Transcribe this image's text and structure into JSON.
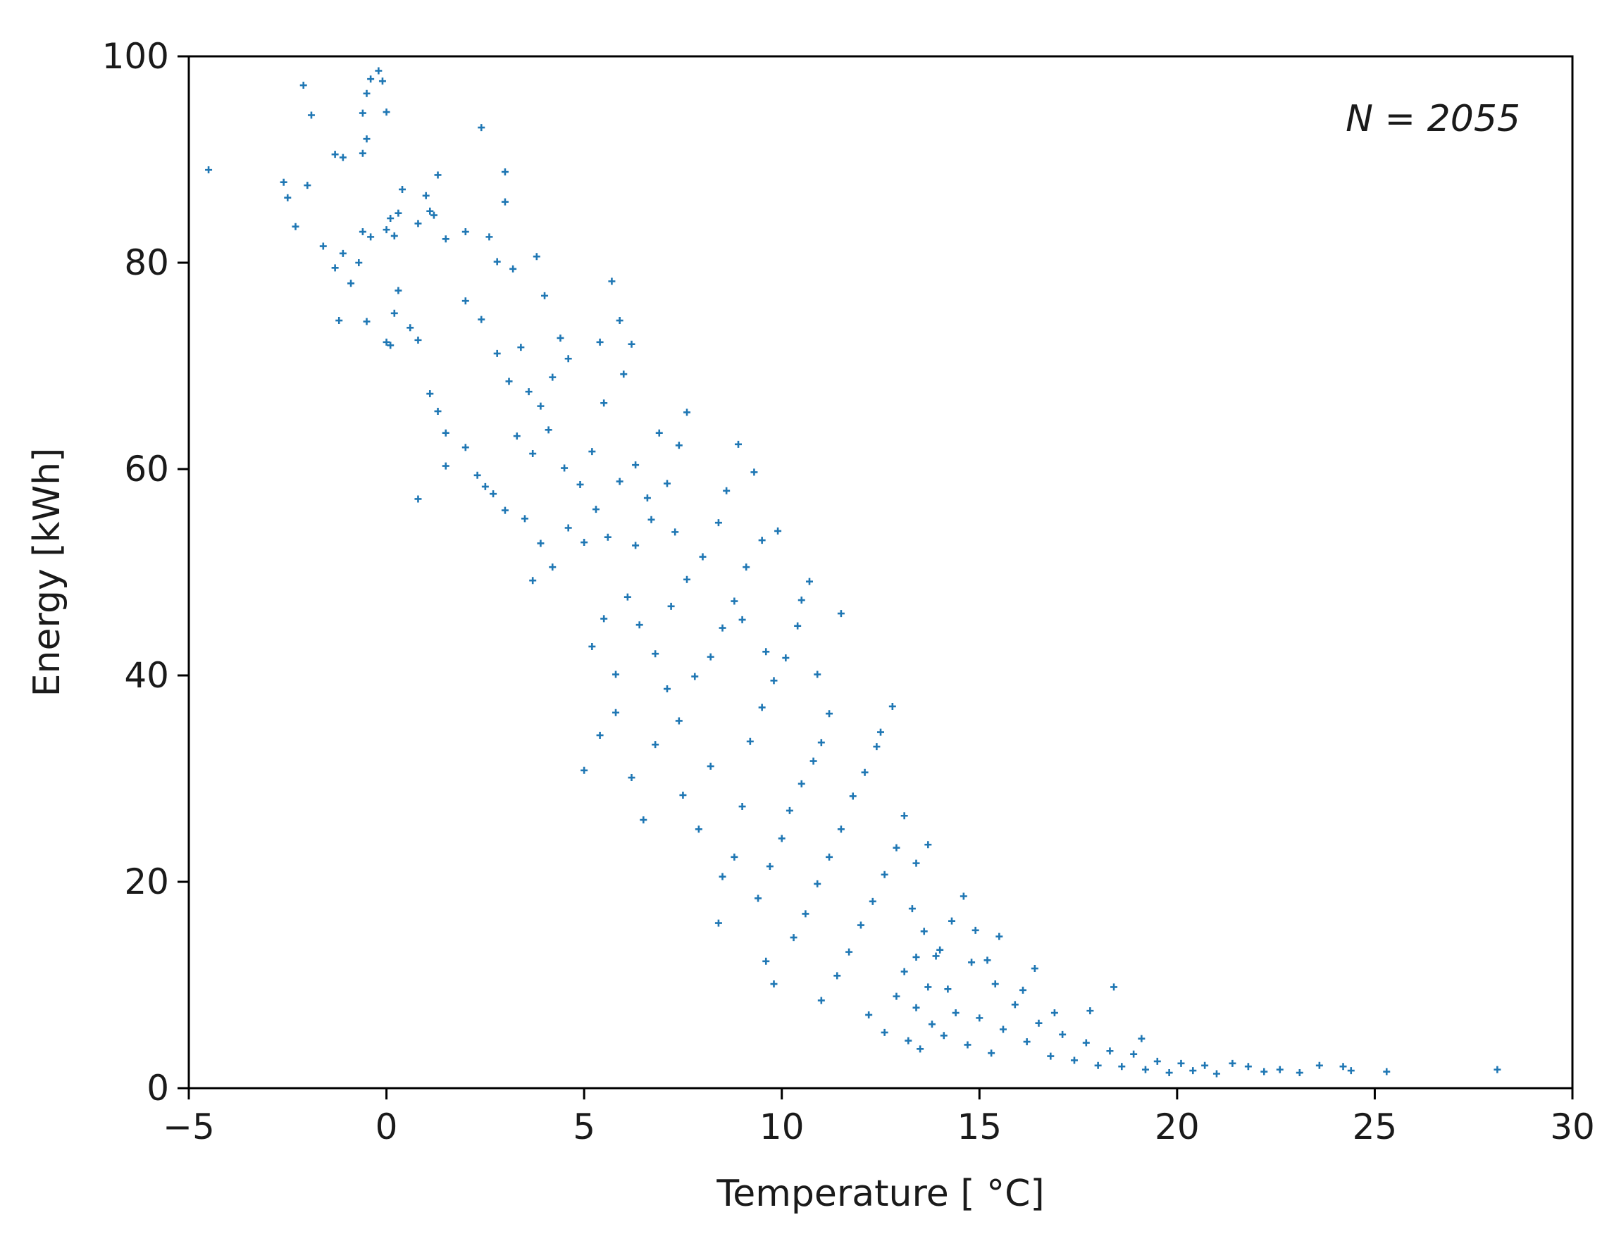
{
  "chart_data": {
    "type": "scatter",
    "title": "",
    "xlabel": "Temperature [ °C]",
    "ylabel": "Energy [kWh]",
    "xlim": [
      -5,
      30
    ],
    "ylim": [
      0,
      100
    ],
    "xticks": [
      -5,
      0,
      5,
      10,
      15,
      20,
      25,
      30
    ],
    "xtick_labels": [
      "−5",
      "0",
      "5",
      "10",
      "15",
      "20",
      "25",
      "30"
    ],
    "yticks": [
      0,
      20,
      40,
      60,
      80,
      100
    ],
    "ytick_labels": [
      "0",
      "20",
      "40",
      "60",
      "80",
      "100"
    ],
    "annotation": "N = 2055",
    "grid": false,
    "legend": "none",
    "marker": "+",
    "color": "#1f77b4",
    "series": [
      {
        "points": [
          [
            -4.5,
            89
          ],
          [
            -2.6,
            87.8
          ],
          [
            -2.5,
            86.3
          ],
          [
            -2.1,
            97.2
          ],
          [
            -1.9,
            94.3
          ],
          [
            -2.0,
            87.5
          ],
          [
            -1.6,
            81.6
          ],
          [
            -2.3,
            83.5
          ],
          [
            -1.3,
            90.5
          ],
          [
            -1.1,
            90.2
          ],
          [
            -0.6,
            90.6
          ],
          [
            -0.5,
            92
          ],
          [
            -0.6,
            94.5
          ],
          [
            -0.5,
            96.4
          ],
          [
            -0.4,
            97.8
          ],
          [
            -0.2,
            98.6
          ],
          [
            -0.1,
            97.6
          ],
          [
            0.0,
            94.6
          ],
          [
            -1.3,
            79.5
          ],
          [
            -1.1,
            80.9
          ],
          [
            -0.9,
            78
          ],
          [
            -0.7,
            80
          ],
          [
            -0.6,
            83
          ],
          [
            -0.4,
            82.5
          ],
          [
            -1.2,
            74.4
          ],
          [
            -0.5,
            74.3
          ],
          [
            0.0,
            72.3
          ],
          [
            0.1,
            72
          ],
          [
            0.2,
            75.1
          ],
          [
            0.3,
            77.3
          ],
          [
            0.0,
            83.2
          ],
          [
            0.1,
            84.3
          ],
          [
            0.2,
            82.6
          ],
          [
            0.3,
            84.8
          ],
          [
            0.4,
            87.1
          ],
          [
            0.8,
            83.8
          ],
          [
            1.0,
            86.5
          ],
          [
            1.1,
            85
          ],
          [
            1.3,
            88.5
          ],
          [
            1.2,
            84.6
          ],
          [
            1.5,
            82.3
          ],
          [
            2.0,
            83
          ],
          [
            2.4,
            93.1
          ],
          [
            3.0,
            88.8
          ],
          [
            3.0,
            85.9
          ],
          [
            2.6,
            82.5
          ],
          [
            2.8,
            80.1
          ],
          [
            3.2,
            79.4
          ],
          [
            0.6,
            73.7
          ],
          [
            0.8,
            72.5
          ],
          [
            1.1,
            67.3
          ],
          [
            1.3,
            65.6
          ],
          [
            1.5,
            63.5
          ],
          [
            0.8,
            57.1
          ],
          [
            1.5,
            60.3
          ],
          [
            2.0,
            62.1
          ],
          [
            2.3,
            59.4
          ],
          [
            2.5,
            58.3
          ],
          [
            2.7,
            57.6
          ],
          [
            3.0,
            56
          ],
          [
            2.0,
            76.3
          ],
          [
            2.4,
            74.5
          ],
          [
            2.8,
            71.2
          ],
          [
            3.1,
            68.5
          ],
          [
            3.4,
            71.8
          ],
          [
            3.8,
            80.6
          ],
          [
            4.0,
            76.8
          ],
          [
            4.4,
            72.7
          ],
          [
            3.6,
            67.5
          ],
          [
            3.9,
            66.1
          ],
          [
            4.2,
            68.9
          ],
          [
            4.6,
            70.7
          ],
          [
            3.3,
            63.2
          ],
          [
            3.7,
            61.5
          ],
          [
            4.1,
            63.8
          ],
          [
            4.5,
            60.1
          ],
          [
            4.9,
            58.5
          ],
          [
            5.2,
            61.7
          ],
          [
            5.7,
            78.2
          ],
          [
            5.4,
            72.3
          ],
          [
            5.9,
            74.4
          ],
          [
            6.2,
            72.1
          ],
          [
            6.0,
            69.2
          ],
          [
            5.5,
            66.4
          ],
          [
            3.5,
            55.2
          ],
          [
            3.9,
            52.8
          ],
          [
            4.2,
            50.5
          ],
          [
            3.7,
            49.2
          ],
          [
            4.6,
            54.3
          ],
          [
            5.0,
            52.9
          ],
          [
            5.3,
            56.1
          ],
          [
            5.6,
            53.4
          ],
          [
            5.9,
            58.8
          ],
          [
            6.3,
            60.4
          ],
          [
            6.6,
            57.2
          ],
          [
            6.9,
            63.5
          ],
          [
            6.3,
            52.6
          ],
          [
            6.7,
            55.1
          ],
          [
            7.1,
            58.6
          ],
          [
            7.4,
            62.3
          ],
          [
            7.6,
            65.5
          ],
          [
            7.3,
            53.9
          ],
          [
            5.2,
            42.8
          ],
          [
            5.5,
            45.5
          ],
          [
            5.8,
            40.1
          ],
          [
            6.1,
            47.6
          ],
          [
            6.4,
            44.9
          ],
          [
            6.8,
            42.1
          ],
          [
            7.2,
            46.7
          ],
          [
            7.6,
            49.3
          ],
          [
            8.0,
            51.5
          ],
          [
            8.4,
            54.8
          ],
          [
            8.6,
            57.9
          ],
          [
            8.9,
            62.4
          ],
          [
            5.0,
            30.8
          ],
          [
            5.4,
            34.2
          ],
          [
            5.8,
            36.4
          ],
          [
            6.2,
            30.1
          ],
          [
            6.5,
            26
          ],
          [
            6.8,
            33.3
          ],
          [
            7.1,
            38.7
          ],
          [
            7.4,
            35.6
          ],
          [
            7.8,
            39.9
          ],
          [
            8.2,
            41.8
          ],
          [
            8.5,
            44.6
          ],
          [
            8.8,
            47.2
          ],
          [
            9.1,
            50.5
          ],
          [
            9.5,
            53.1
          ],
          [
            9.9,
            54
          ],
          [
            9.3,
            59.7
          ],
          [
            9.0,
            45.4
          ],
          [
            9.6,
            42.3
          ],
          [
            7.5,
            28.4
          ],
          [
            7.9,
            25.1
          ],
          [
            8.2,
            31.2
          ],
          [
            8.5,
            20.5
          ],
          [
            8.4,
            16
          ],
          [
            8.8,
            22.4
          ],
          [
            9.0,
            27.3
          ],
          [
            9.2,
            33.6
          ],
          [
            9.5,
            36.9
          ],
          [
            9.8,
            39.5
          ],
          [
            10.1,
            41.7
          ],
          [
            10.4,
            44.8
          ],
          [
            10.5,
            47.3
          ],
          [
            10.7,
            49.1
          ],
          [
            11.5,
            46
          ],
          [
            10.9,
            40.1
          ],
          [
            11.2,
            36.3
          ],
          [
            11.0,
            33.5
          ],
          [
            9.4,
            18.4
          ],
          [
            9.7,
            21.5
          ],
          [
            10.0,
            24.2
          ],
          [
            10.2,
            26.9
          ],
          [
            10.5,
            29.5
          ],
          [
            10.8,
            31.7
          ],
          [
            9.6,
            12.3
          ],
          [
            9.8,
            10.1
          ],
          [
            10.3,
            14.6
          ],
          [
            10.6,
            16.9
          ],
          [
            10.9,
            19.8
          ],
          [
            11.2,
            22.4
          ],
          [
            11.5,
            25.1
          ],
          [
            11.8,
            28.3
          ],
          [
            12.1,
            30.6
          ],
          [
            12.4,
            33.1
          ],
          [
            12.8,
            37
          ],
          [
            12.5,
            34.5
          ],
          [
            11.0,
            8.5
          ],
          [
            11.4,
            10.9
          ],
          [
            11.7,
            13.2
          ],
          [
            12.0,
            15.8
          ],
          [
            12.3,
            18.1
          ],
          [
            12.6,
            20.7
          ],
          [
            12.9,
            23.3
          ],
          [
            13.1,
            26.4
          ],
          [
            13.4,
            21.8
          ],
          [
            13.7,
            23.6
          ],
          [
            13.3,
            17.4
          ],
          [
            13.6,
            15.2
          ],
          [
            12.2,
            7.1
          ],
          [
            12.6,
            5.4
          ],
          [
            12.9,
            8.9
          ],
          [
            13.1,
            11.3
          ],
          [
            13.4,
            12.7
          ],
          [
            13.7,
            9.8
          ],
          [
            14.0,
            13.4
          ],
          [
            14.3,
            16.2
          ],
          [
            14.6,
            18.6
          ],
          [
            14.9,
            15.3
          ],
          [
            15.2,
            12.4
          ],
          [
            15.5,
            14.7
          ],
          [
            13.2,
            4.6
          ],
          [
            13.5,
            3.8
          ],
          [
            13.8,
            6.2
          ],
          [
            14.1,
            5.1
          ],
          [
            14.4,
            7.3
          ],
          [
            14.7,
            4.2
          ],
          [
            15.0,
            6.8
          ],
          [
            15.3,
            3.4
          ],
          [
            15.6,
            5.7
          ],
          [
            15.9,
            8.1
          ],
          [
            16.2,
            4.5
          ],
          [
            16.5,
            6.3
          ],
          [
            16.8,
            3.1
          ],
          [
            17.1,
            5.2
          ],
          [
            17.4,
            2.7
          ],
          [
            17.7,
            4.4
          ],
          [
            18.0,
            2.2
          ],
          [
            18.3,
            3.6
          ],
          [
            18.6,
            2.1
          ],
          [
            18.9,
            3.3
          ],
          [
            19.2,
            1.8
          ],
          [
            19.5,
            2.6
          ],
          [
            19.8,
            1.5
          ],
          [
            20.1,
            2.4
          ],
          [
            20.4,
            1.7
          ],
          [
            20.7,
            2.2
          ],
          [
            21.0,
            1.4
          ],
          [
            21.4,
            2.4
          ],
          [
            21.8,
            2.1
          ],
          [
            22.2,
            1.6
          ],
          [
            22.6,
            1.8
          ],
          [
            23.1,
            1.5
          ],
          [
            23.6,
            2.2
          ],
          [
            24.2,
            2.1
          ],
          [
            24.4,
            1.7
          ],
          [
            25.3,
            1.6
          ],
          [
            28.1,
            1.8
          ],
          [
            18.4,
            9.8
          ],
          [
            19.1,
            4.8
          ],
          [
            17.8,
            7.5
          ],
          [
            16.9,
            7.3
          ],
          [
            16.1,
            9.5
          ],
          [
            14.2,
            9.6
          ],
          [
            13.9,
            12.8
          ],
          [
            15.4,
            10.1
          ],
          [
            14.8,
            12.2
          ],
          [
            16.4,
            11.6
          ],
          [
            13.4,
            7.8
          ]
        ]
      }
    ]
  }
}
